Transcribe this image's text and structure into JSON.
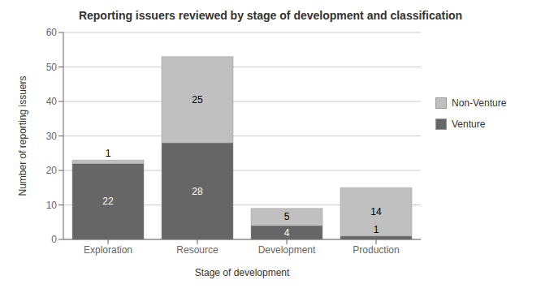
{
  "chart_data": {
    "type": "bar",
    "title": "Reporting issuers reviewed by stage of development and classification",
    "categories": [
      "Exploration",
      "Resource",
      "Development",
      "Production"
    ],
    "series": [
      {
        "name": "Venture",
        "color": "#666666",
        "values": [
          22,
          28,
          4,
          1
        ]
      },
      {
        "name": "Non-Venture",
        "color": "#c0c0c0",
        "values": [
          1,
          25,
          5,
          14
        ]
      }
    ],
    "stacked": true,
    "xlabel": "Stage of development",
    "ylabel": "Number of reporting issuers",
    "ylim": [
      0,
      60
    ],
    "yticks": [
      0,
      10,
      20,
      30,
      40,
      50,
      60
    ],
    "grid": true,
    "legend": "right",
    "data_labels": true
  }
}
